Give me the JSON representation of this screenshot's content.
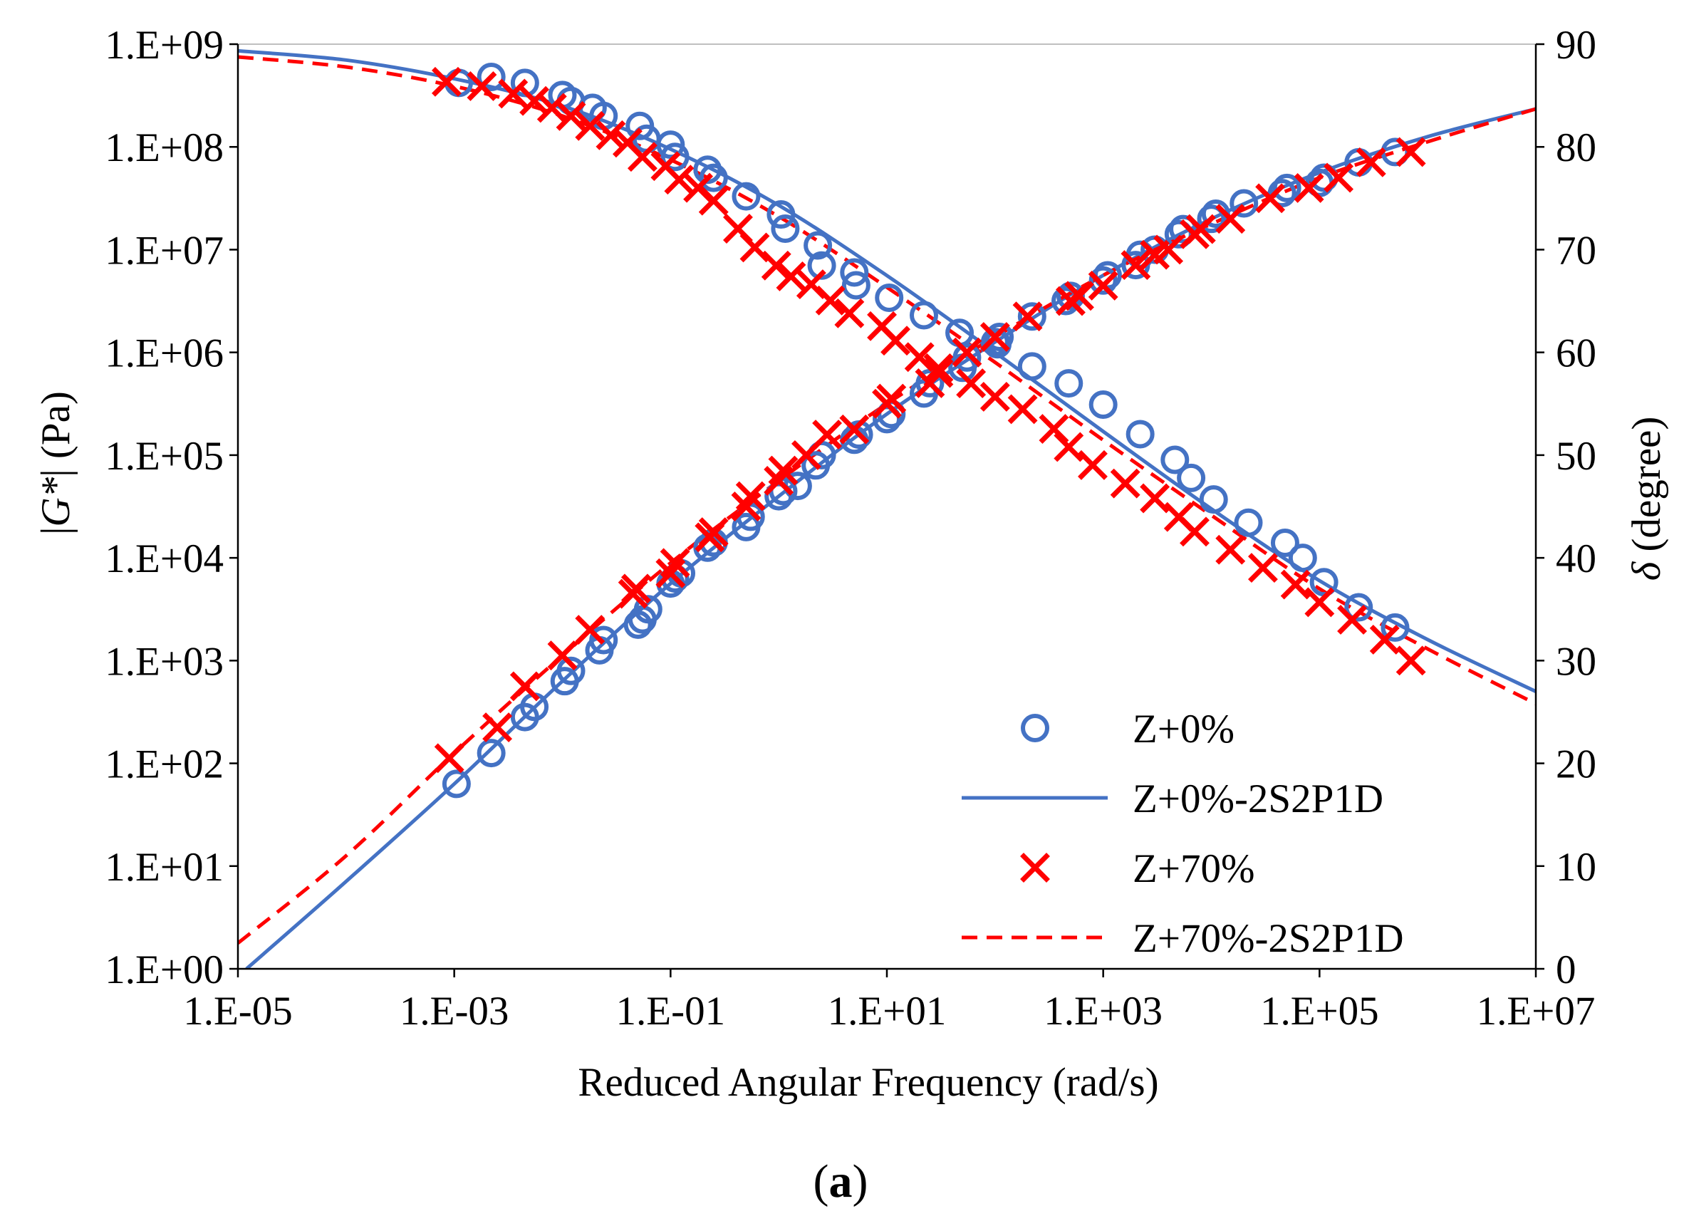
{
  "chart_data": {
    "type": "scatter",
    "title": "",
    "caption": {
      "open": "(",
      "letter": "a",
      "close": ")"
    },
    "xlabel": "Reduced  Angular Frequency (rad/s)",
    "ylabel": {
      "open": "|",
      "symbol": "G*",
      "close": "| (Pa)"
    },
    "y2label": {
      "symbol": "δ",
      "unit": " (degree)"
    },
    "x_scale": "log",
    "y_scale": "log",
    "xlim": [
      1e-05,
      10000000.0
    ],
    "ylim": [
      1,
      1000000000.0
    ],
    "y2lim": [
      0,
      90
    ],
    "x_ticks": [
      {
        "value": 1e-05,
        "label": "1.E-05"
      },
      {
        "value": 0.001,
        "label": "1.E-03"
      },
      {
        "value": 0.1,
        "label": "1.E-01"
      },
      {
        "value": 10.0,
        "label": "1.E+01"
      },
      {
        "value": 1000.0,
        "label": "1.E+03"
      },
      {
        "value": 100000.0,
        "label": "1.E+05"
      },
      {
        "value": 10000000.0,
        "label": "1.E+07"
      }
    ],
    "y_ticks": [
      {
        "value": 1,
        "label": "1.E+00"
      },
      {
        "value": 10,
        "label": "1.E+01"
      },
      {
        "value": 100,
        "label": "1.E+02"
      },
      {
        "value": 1000,
        "label": "1.E+03"
      },
      {
        "value": 10000,
        "label": "1.E+04"
      },
      {
        "value": 100000,
        "label": "1.E+05"
      },
      {
        "value": 1000000,
        "label": "1.E+06"
      },
      {
        "value": 10000000,
        "label": "1.E+07"
      },
      {
        "value": 100000000,
        "label": "1.E+08"
      },
      {
        "value": 1000000000,
        "label": "1.E+09"
      }
    ],
    "y2_ticks": [
      {
        "value": 0,
        "label": "0"
      },
      {
        "value": 10,
        "label": "10"
      },
      {
        "value": 20,
        "label": "20"
      },
      {
        "value": 30,
        "label": "30"
      },
      {
        "value": 40,
        "label": "40"
      },
      {
        "value": 50,
        "label": "50"
      },
      {
        "value": 60,
        "label": "60"
      },
      {
        "value": 70,
        "label": "70"
      },
      {
        "value": 80,
        "label": "80"
      },
      {
        "value": 90,
        "label": "90"
      }
    ],
    "grid": false,
    "legend_position": "bottom-right",
    "colors": {
      "blue": "#4472C4",
      "red": "#FF0000",
      "axis": "#000000",
      "frame": "#BFBFBF"
    },
    "series": [
      {
        "name": "Z+0%",
        "kind": "markers",
        "marker": "circle",
        "color": "#4472C4",
        "modulus": {
          "x": [
            0.0011,
            0.0022,
            0.0045,
            0.01,
            0.012,
            0.019,
            0.024,
            0.052,
            0.06,
            0.1,
            0.11,
            0.22,
            0.25,
            0.5,
            1.05,
            1.15,
            2.3,
            2.5,
            5.0,
            5.2,
            10.5,
            22,
            47,
            105,
            220,
            480,
            1000,
            2200,
            4600,
            6500,
            10500,
            22000,
            48000,
            70000,
            110000,
            230000,
            500000
          ],
          "y": [
            420000000.0,
            480000000.0,
            420000000.0,
            320000000.0,
            280000000.0,
            240000000.0,
            200000000.0,
            160000000.0,
            120000000.0,
            105000000.0,
            80000000.0,
            60000000.0,
            50000000.0,
            33000000.0,
            22000000.0,
            16000000.0,
            11000000.0,
            7000000.0,
            6000000.0,
            4500000.0,
            3400000.0,
            2300000.0,
            1550000.0,
            1200000.0,
            730000.0,
            500000.0,
            310000.0,
            160000.0,
            90000.0,
            60000.0,
            37000.0,
            22000.0,
            14000.0,
            10000.0,
            5800.0,
            3300.0,
            2100.0
          ]
        },
        "phase": {
          "x": [
            0.00105,
            0.0022,
            0.0045,
            0.0055,
            0.0105,
            0.012,
            0.022,
            0.024,
            0.05,
            0.055,
            0.062,
            0.1,
            0.11,
            0.125,
            0.22,
            0.25,
            0.5,
            0.55,
            1.0,
            1.1,
            1.5,
            2.2,
            2.5,
            5.0,
            5.5,
            10,
            11,
            22,
            25,
            50,
            55,
            100,
            110,
            220,
            450,
            500,
            1000,
            1100,
            2000,
            2200,
            3000,
            5000,
            5500,
            10000,
            11000,
            20000,
            45000,
            50000,
            100000,
            110000,
            230000,
            500000
          ],
          "y": [
            18,
            21,
            24.5,
            25.5,
            28,
            29,
            31,
            32,
            33.5,
            34,
            35,
            37.5,
            38,
            38.5,
            41,
            41.5,
            43,
            44,
            46,
            46.5,
            47,
            49,
            50,
            51.5,
            52,
            53.5,
            54,
            56,
            57,
            58.5,
            59.5,
            61,
            61.5,
            63.5,
            65,
            65.5,
            67,
            67.5,
            68.5,
            69.5,
            70,
            71.5,
            72,
            73,
            73.5,
            74.5,
            75.5,
            76,
            76.5,
            77,
            78.5,
            79.5
          ]
        }
      },
      {
        "name": "Z+0%-2S2P1D",
        "kind": "line",
        "line_style": "solid",
        "color": "#4472C4",
        "modulus": {
          "x": [
            1e-05,
            0.0001,
            0.001,
            0.01,
            0.1,
            1,
            10,
            100,
            1000,
            10000,
            100000,
            1000000,
            10000000.0
          ],
          "y": [
            860000000.0,
            700000000.0,
            460000000.0,
            250000000.0,
            95000000.0,
            27000000.0,
            5600000.0,
            1000000.0,
            170000.0,
            30000.0,
            6000.0,
            1600.0,
            500.0
          ]
        },
        "phase": {
          "x": [
            1.2e-05,
            0.0001,
            0.001,
            0.01,
            0.1,
            1,
            10,
            100,
            1000,
            10000,
            100000,
            1000000,
            10000000.0
          ],
          "y": [
            0,
            8.5,
            18,
            28,
            37.5,
            46,
            54,
            61,
            67.5,
            73,
            77.5,
            81,
            83.7
          ]
        }
      },
      {
        "name": "Z+70%",
        "kind": "markers",
        "marker": "x",
        "color": "#FF0000",
        "modulus": {
          "x": [
            0.00085,
            0.0018,
            0.0035,
            0.0055,
            0.008,
            0.012,
            0.018,
            0.028,
            0.04,
            0.055,
            0.09,
            0.12,
            0.18,
            0.25,
            0.42,
            0.6,
            0.95,
            1.3,
            2.0,
            3.0,
            4.5,
            9,
            12,
            20,
            30,
            60,
            100,
            180,
            350,
            480,
            800,
            1600,
            3000,
            5000,
            7000,
            15000,
            30000,
            60000,
            100000,
            200000,
            400000,
            700000
          ],
          "y": [
            430000000.0,
            390000000.0,
            330000000.0,
            280000000.0,
            240000000.0,
            200000000.0,
            160000000.0,
            130000000.0,
            110000000.0,
            80000000.0,
            65000000.0,
            48000000.0,
            40000000.0,
            30000000.0,
            16000000.0,
            10500000.0,
            7000000.0,
            5500000.0,
            4600000.0,
            3200000.0,
            2400000.0,
            1800000.0,
            1300000.0,
            900000.0,
            700000.0,
            500000.0,
            370000.0,
            280000.0,
            180000.0,
            120000.0,
            80000.0,
            53000.0,
            38000.0,
            25000.0,
            18000.0,
            12000.0,
            8000.0,
            5500.0,
            3700.0,
            2500.0,
            1600.0,
            1000.0
          ]
        },
        "phase": {
          "x": [
            0.0009,
            0.0025,
            0.0045,
            0.01,
            0.018,
            0.045,
            0.048,
            0.1,
            0.11,
            0.23,
            0.25,
            0.5,
            0.55,
            1.0,
            1.1,
            1.8,
            2.8,
            5.0,
            10,
            11,
            25,
            30,
            55,
            100,
            200,
            500,
            600,
            1000,
            2000,
            3000,
            4000,
            7000,
            8000,
            15000,
            35000,
            80000,
            150000,
            300000,
            700000
          ],
          "y": [
            20.5,
            23.5,
            27.5,
            30.5,
            33,
            36.5,
            37,
            38.5,
            39.5,
            42,
            42.5,
            45,
            46,
            47.5,
            48.5,
            50,
            52,
            52.5,
            55,
            55.5,
            57,
            58,
            60,
            61.5,
            63.5,
            65,
            65.5,
            66.5,
            68.5,
            69.5,
            70,
            71.5,
            72,
            73,
            75,
            76,
            77,
            78.5,
            79.5
          ]
        }
      },
      {
        "name": "Z+70%-2S2P1D",
        "kind": "line",
        "line_style": "dashed",
        "color": "#FF0000",
        "modulus": {
          "x": [
            1e-05,
            0.0001,
            0.001,
            0.01,
            0.1,
            1,
            10,
            100,
            1000,
            10000,
            100000,
            1000000,
            10000000.0
          ],
          "y": [
            750000000.0,
            600000000.0,
            390000000.0,
            200000000.0,
            75000000.0,
            21000000.0,
            4300000.0,
            800000.0,
            140000.0,
            26000.0,
            5000.0,
            1300.0,
            380.0
          ]
        },
        "phase": {
          "x": [
            1e-05,
            0.0001,
            0.001,
            0.01,
            0.1,
            1,
            10,
            100,
            1000,
            10000,
            100000,
            1000000,
            10000000.0
          ],
          "y": [
            2.5,
            11,
            21,
            30.5,
            39.5,
            47.5,
            55,
            61.5,
            67.5,
            72.5,
            77,
            80.5,
            83.7
          ]
        }
      }
    ]
  }
}
